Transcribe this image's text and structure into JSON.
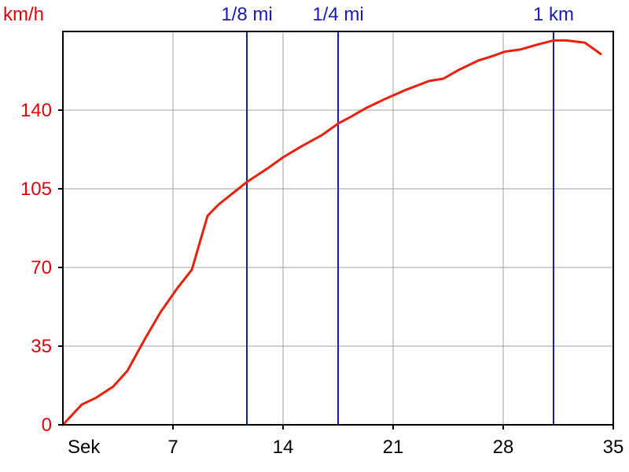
{
  "chart_data": {
    "type": "line",
    "title": "",
    "xlabel": "Sek",
    "ylabel": "km/h",
    "xlim": [
      0,
      35
    ],
    "ylim": [
      0,
      175
    ],
    "x_ticks": [
      7,
      14,
      21,
      28,
      35
    ],
    "y_ticks": [
      0,
      35,
      70,
      105,
      140
    ],
    "grid": true,
    "colors": {
      "line": "#e8200c",
      "markers": "#1a1ab8",
      "y_axis_text": "#e0000a",
      "x_axis_text": "#000000",
      "grid": "#a0a0a0"
    },
    "vertical_markers": [
      {
        "label": "1/8 mi",
        "x": 11.7
      },
      {
        "label": "1/4 mi",
        "x": 17.5
      },
      {
        "label": "1 km",
        "x": 31.2
      }
    ],
    "series": [
      {
        "x": [
          0,
          1.2,
          2.1,
          3.2,
          4.1,
          5.2,
          6.2,
          7.3,
          8.2,
          9.2,
          9.9,
          10.8,
          11.7,
          13,
          14,
          15.2,
          16.5,
          17.5,
          18.3,
          19.3,
          20.5,
          21.8,
          23.3,
          24.2,
          25.2,
          26.4,
          27.3,
          28.1,
          29.1,
          30.1,
          31.2,
          32,
          33.2,
          34.2
        ],
        "y": [
          0,
          9,
          12,
          17,
          24,
          38,
          50,
          61,
          69,
          93,
          98,
          103,
          108,
          114,
          119,
          124,
          129,
          134,
          137,
          141,
          145,
          149,
          153,
          154,
          158,
          162,
          164,
          166,
          167,
          169,
          171,
          171,
          170,
          165
        ]
      }
    ]
  }
}
